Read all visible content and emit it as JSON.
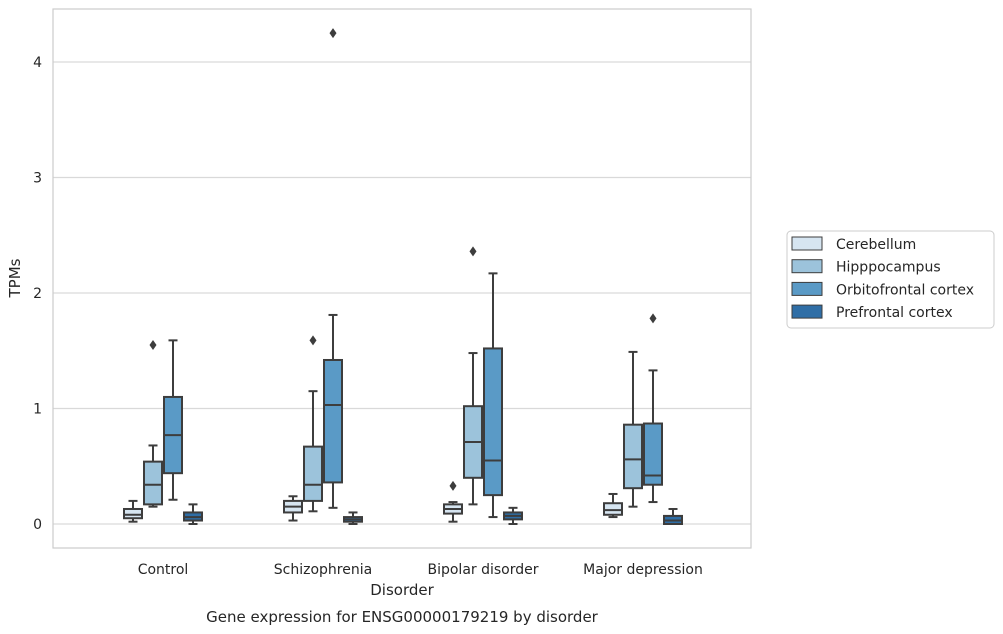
{
  "chart_data": {
    "type": "box",
    "title": "Gene expression for ENSG00000179219 by disorder",
    "xlabel": "Disorder",
    "ylabel": "TPMs",
    "ylim": [
      -0.2,
      4.47
    ],
    "yticks": [
      0,
      1,
      2,
      3,
      4
    ],
    "grid": true,
    "legend_position": "right",
    "categories": [
      "Control",
      "Schizophrenia",
      "Bipolar disorder",
      "Major depression"
    ],
    "series": [
      {
        "name": "Cerebellum",
        "color": "#d6e5f1",
        "boxes": [
          {
            "whisker_low": 0.02,
            "q1": 0.05,
            "median": 0.08,
            "q3": 0.13,
            "whisker_high": 0.2,
            "outliers": []
          },
          {
            "whisker_low": 0.03,
            "q1": 0.1,
            "median": 0.15,
            "q3": 0.2,
            "whisker_high": 0.24,
            "outliers": []
          },
          {
            "whisker_low": 0.02,
            "q1": 0.09,
            "median": 0.13,
            "q3": 0.17,
            "whisker_high": 0.19,
            "outliers": [
              0.33
            ]
          },
          {
            "whisker_low": 0.06,
            "q1": 0.08,
            "median": 0.12,
            "q3": 0.18,
            "whisker_high": 0.26,
            "outliers": []
          }
        ]
      },
      {
        "name": "Hipppocampus",
        "color": "#9cc3db",
        "boxes": [
          {
            "whisker_low": 0.15,
            "q1": 0.17,
            "median": 0.34,
            "q3": 0.54,
            "whisker_high": 0.68,
            "outliers": [
              1.55
            ]
          },
          {
            "whisker_low": 0.11,
            "q1": 0.2,
            "median": 0.34,
            "q3": 0.67,
            "whisker_high": 1.15,
            "outliers": [
              1.59
            ]
          },
          {
            "whisker_low": 0.17,
            "q1": 0.4,
            "median": 0.71,
            "q3": 1.02,
            "whisker_high": 1.48,
            "outliers": [
              2.36
            ]
          },
          {
            "whisker_low": 0.15,
            "q1": 0.31,
            "median": 0.56,
            "q3": 0.86,
            "whisker_high": 1.49,
            "outliers": []
          }
        ]
      },
      {
        "name": "Orbitofrontal cortex",
        "color": "#5a9ac6",
        "boxes": [
          {
            "whisker_low": 0.21,
            "q1": 0.44,
            "median": 0.77,
            "q3": 1.1,
            "whisker_high": 1.59,
            "outliers": []
          },
          {
            "whisker_low": 0.14,
            "q1": 0.36,
            "median": 1.03,
            "q3": 1.42,
            "whisker_high": 1.81,
            "outliers": [
              4.25
            ]
          },
          {
            "whisker_low": 0.06,
            "q1": 0.25,
            "median": 0.55,
            "q3": 1.52,
            "whisker_high": 2.17,
            "outliers": []
          },
          {
            "whisker_low": 0.19,
            "q1": 0.34,
            "median": 0.42,
            "q3": 0.87,
            "whisker_high": 1.33,
            "outliers": [
              1.78
            ]
          }
        ]
      },
      {
        "name": "Prefrontal cortex",
        "color": "#2f6ea6",
        "boxes": [
          {
            "whisker_low": 0.0,
            "q1": 0.03,
            "median": 0.06,
            "q3": 0.1,
            "whisker_high": 0.17,
            "outliers": []
          },
          {
            "whisker_low": 0.0,
            "q1": 0.02,
            "median": 0.04,
            "q3": 0.06,
            "whisker_high": 0.1,
            "outliers": []
          },
          {
            "whisker_low": 0.0,
            "q1": 0.04,
            "median": 0.07,
            "q3": 0.1,
            "whisker_high": 0.14,
            "outliers": []
          },
          {
            "whisker_low": 0.0,
            "q1": 0.0,
            "median": 0.03,
            "q3": 0.07,
            "whisker_high": 0.13,
            "outliers": []
          }
        ]
      }
    ]
  }
}
